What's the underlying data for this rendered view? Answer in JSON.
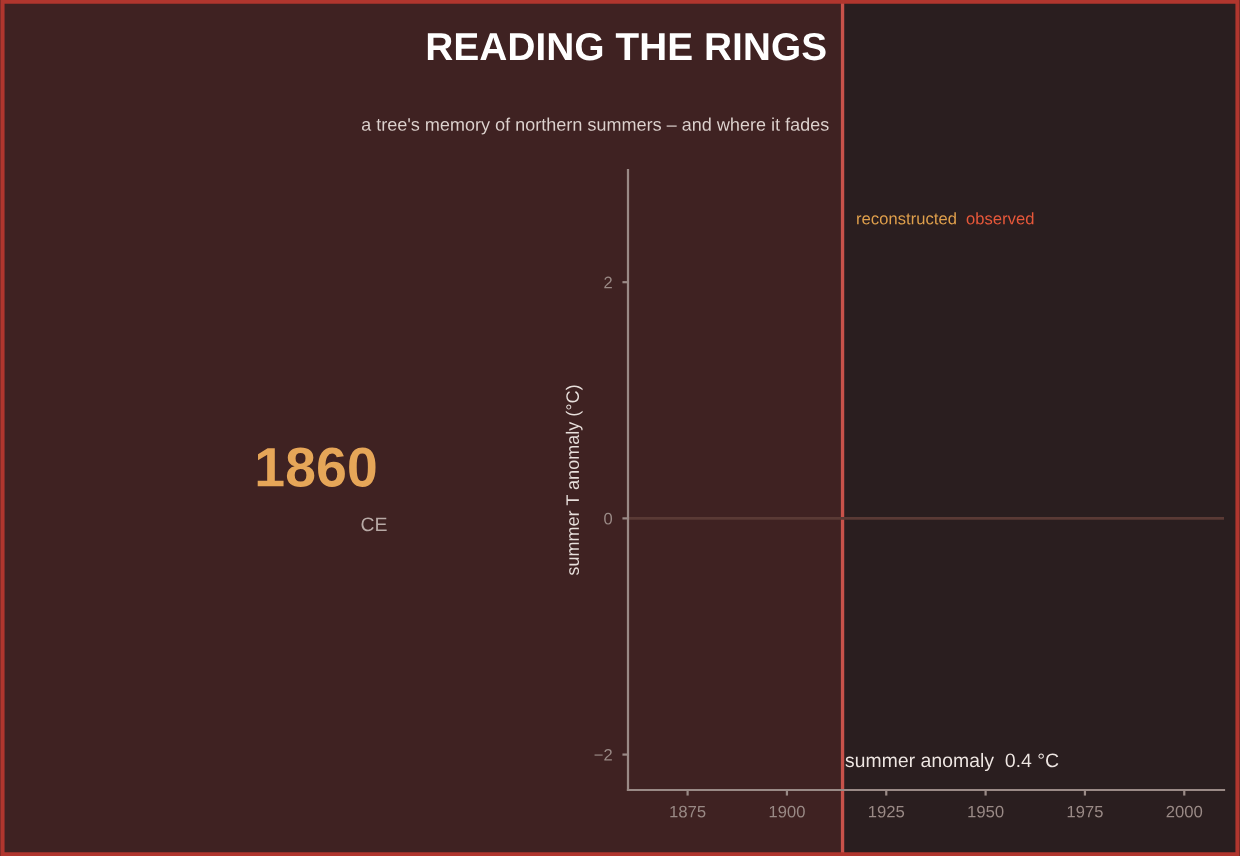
{
  "chart_data": {
    "type": "line",
    "title": "READING THE RINGS",
    "subtitle": "a tree's memory of northern summers – and where it fades",
    "ylabel": "summer T anomaly (°C)",
    "xlim": [
      1860,
      2010
    ],
    "xticks": [
      1875,
      1900,
      1925,
      1950,
      1975,
      2000
    ],
    "ylim": [
      -2.3,
      2.95
    ],
    "yticks": [
      -2,
      0,
      2
    ],
    "ref_lines": [
      {
        "axis": "x",
        "value": 1914,
        "color": "#c8524a"
      },
      {
        "axis": "y",
        "value": 0,
        "color": "#5a3a35"
      }
    ],
    "bands": [
      {
        "axis": "x",
        "from": 1860,
        "to": 1914,
        "color": "#3f2222"
      }
    ],
    "annotations": [
      "1860",
      "CE",
      "summer anomaly  0.4 °C",
      "reconstructed",
      "observed"
    ],
    "grid": false
  }
}
